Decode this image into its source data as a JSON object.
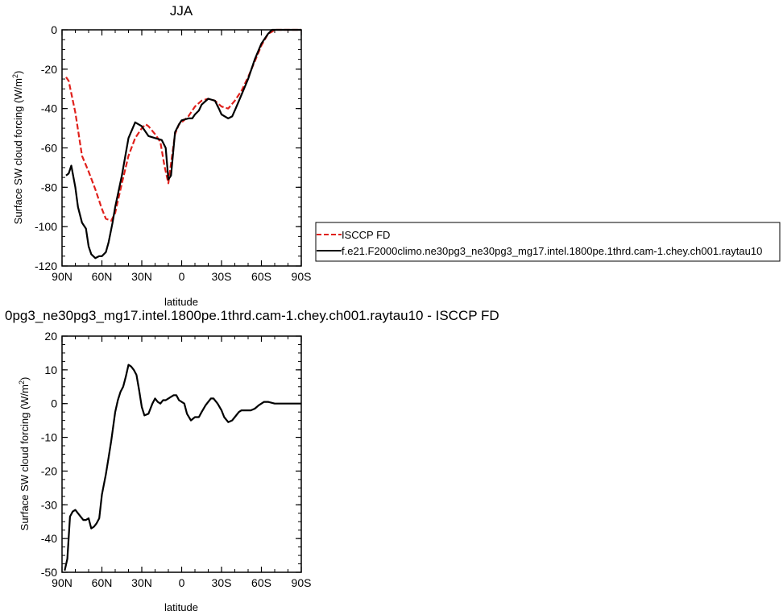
{
  "chart_data": [
    {
      "type": "line",
      "title": "JJA",
      "xlabel": "latitude",
      "ylabel": "Surface SW cloud forcing (W/m",
      "ylabel_sup": "2",
      "ylabel_end": ")",
      "xlim": [
        90,
        -90
      ],
      "ylim": [
        -120,
        0
      ],
      "x_ticks": [
        90,
        60,
        30,
        0,
        -30,
        -60,
        -90
      ],
      "x_tick_labels": [
        "90N",
        "60N",
        "30N",
        "0",
        "30S",
        "60S",
        "90S"
      ],
      "y_ticks": [
        0,
        -20,
        -40,
        -60,
        -80,
        -100,
        -120
      ],
      "y_tick_labels": [
        "0",
        "-20",
        "-40",
        "-60",
        "-80",
        "-100",
        "-120"
      ],
      "grid": false,
      "legend_position": "right",
      "series": [
        {
          "name": "ISCCP FD",
          "color": "#e0201b",
          "dash": "dashed",
          "x": [
            87,
            85,
            80,
            75,
            70,
            65,
            60,
            57,
            53,
            50,
            45,
            40,
            35,
            30,
            27,
            25,
            20,
            16,
            13,
            10,
            8,
            5,
            2,
            0,
            -5,
            -10,
            -15,
            -20,
            -25,
            -30,
            -35,
            -40,
            -45,
            -50,
            -55,
            -60,
            -65,
            -68,
            -70,
            -75,
            -80,
            -85,
            -90
          ],
          "y": [
            -24,
            -26,
            -42,
            -64,
            -72,
            -81,
            -91,
            -96,
            -97,
            -93,
            -78,
            -64,
            -55,
            -50,
            -48,
            -49,
            -53,
            -57,
            -69,
            -78,
            -68,
            -53,
            -48,
            -47,
            -44,
            -39,
            -36,
            -35,
            -36,
            -39,
            -40,
            -36,
            -31,
            -24,
            -16,
            -8,
            -2,
            -1,
            0,
            0,
            0,
            0,
            0
          ]
        },
        {
          "name": "f.e21.F2000climo.ne30pg3_ne30pg3_mg17.intel.1800pe.1thrd.cam-1.chey.ch001.raytau10",
          "color": "#000000",
          "dash": "solid",
          "x": [
            87,
            85,
            83,
            80,
            78,
            75,
            72,
            70,
            68,
            65,
            62,
            60,
            57,
            55,
            52,
            50,
            45,
            40,
            35,
            30,
            25,
            20,
            15,
            12,
            10,
            8,
            5,
            2,
            0,
            -5,
            -8,
            -10,
            -13,
            -15,
            -20,
            -25,
            -28,
            -30,
            -35,
            -38,
            -40,
            -45,
            -50,
            -55,
            -60,
            -65,
            -68,
            -70,
            -75,
            -80,
            -85,
            -90
          ],
          "y": [
            -74,
            -73,
            -69,
            -80,
            -90,
            -98,
            -101,
            -110,
            -114,
            -116,
            -115,
            -115,
            -113,
            -108,
            -98,
            -90,
            -74,
            -55,
            -47,
            -49,
            -54,
            -55,
            -56,
            -60,
            -76,
            -74,
            -52,
            -48,
            -46,
            -45,
            -45,
            -43,
            -41,
            -38,
            -35,
            -36,
            -40,
            -43,
            -45,
            -44,
            -41,
            -33,
            -25,
            -15,
            -7,
            -2,
            0,
            0,
            0,
            0,
            0,
            0
          ]
        }
      ]
    },
    {
      "type": "line",
      "title": "0pg3_ne30pg3_mg17.intel.1800pe.1thrd.cam-1.chey.ch001.raytau10 - ISCCP FD",
      "xlabel": "latitude",
      "ylabel": "Surface SW cloud forcing (W/m",
      "ylabel_sup": "2",
      "ylabel_end": ")",
      "xlim": [
        90,
        -90
      ],
      "ylim": [
        -50,
        20
      ],
      "x_ticks": [
        90,
        60,
        30,
        0,
        -30,
        -60,
        -90
      ],
      "x_tick_labels": [
        "90N",
        "60N",
        "30N",
        "0",
        "30S",
        "60S",
        "90S"
      ],
      "y_ticks": [
        20,
        10,
        0,
        -10,
        -20,
        -30,
        -40,
        -50
      ],
      "y_tick_labels": [
        "20",
        "10",
        "0",
        "-10",
        "-20",
        "-30",
        "-40",
        "-50"
      ],
      "grid": false,
      "series": [
        {
          "color": "#000000",
          "dash": "solid",
          "x": [
            88,
            86,
            84,
            82,
            80,
            78,
            76,
            74,
            72,
            70,
            68,
            66,
            64,
            62,
            60,
            57,
            55,
            53,
            50,
            48,
            46,
            44,
            42,
            40,
            38,
            36,
            34,
            32,
            30,
            28,
            25,
            22,
            20,
            18,
            16,
            14,
            12,
            10,
            8,
            6,
            4,
            2,
            0,
            -2,
            -4,
            -7,
            -10,
            -13,
            -15,
            -18,
            -20,
            -22,
            -24,
            -27,
            -30,
            -32,
            -35,
            -38,
            -40,
            -43,
            -45,
            -48,
            -50,
            -52,
            -55,
            -58,
            -60,
            -62,
            -65,
            -70,
            -75,
            -80,
            -85,
            -90
          ],
          "y": [
            -49.5,
            -46,
            -33.5,
            -32,
            -31.5,
            -32.5,
            -33.5,
            -34.5,
            -34.5,
            -34,
            -37,
            -36.5,
            -35.5,
            -34,
            -27,
            -21,
            -16,
            -11,
            -2.5,
            1,
            3.5,
            5,
            8,
            11.5,
            11,
            10,
            8.5,
            4,
            -1,
            -3.5,
            -3,
            0,
            1.5,
            0.5,
            0,
            1,
            1,
            1.5,
            2,
            2.5,
            2.5,
            1,
            0.5,
            0,
            -3,
            -5,
            -4,
            -4,
            -2.5,
            -0.5,
            0.5,
            1.5,
            1.5,
            0,
            -2,
            -4,
            -5.5,
            -5,
            -4,
            -2.5,
            -2,
            -2,
            -2,
            -2,
            -1.5,
            -0.5,
            0,
            0.5,
            0.5,
            0,
            0,
            0,
            0,
            0
          ]
        }
      ]
    }
  ]
}
